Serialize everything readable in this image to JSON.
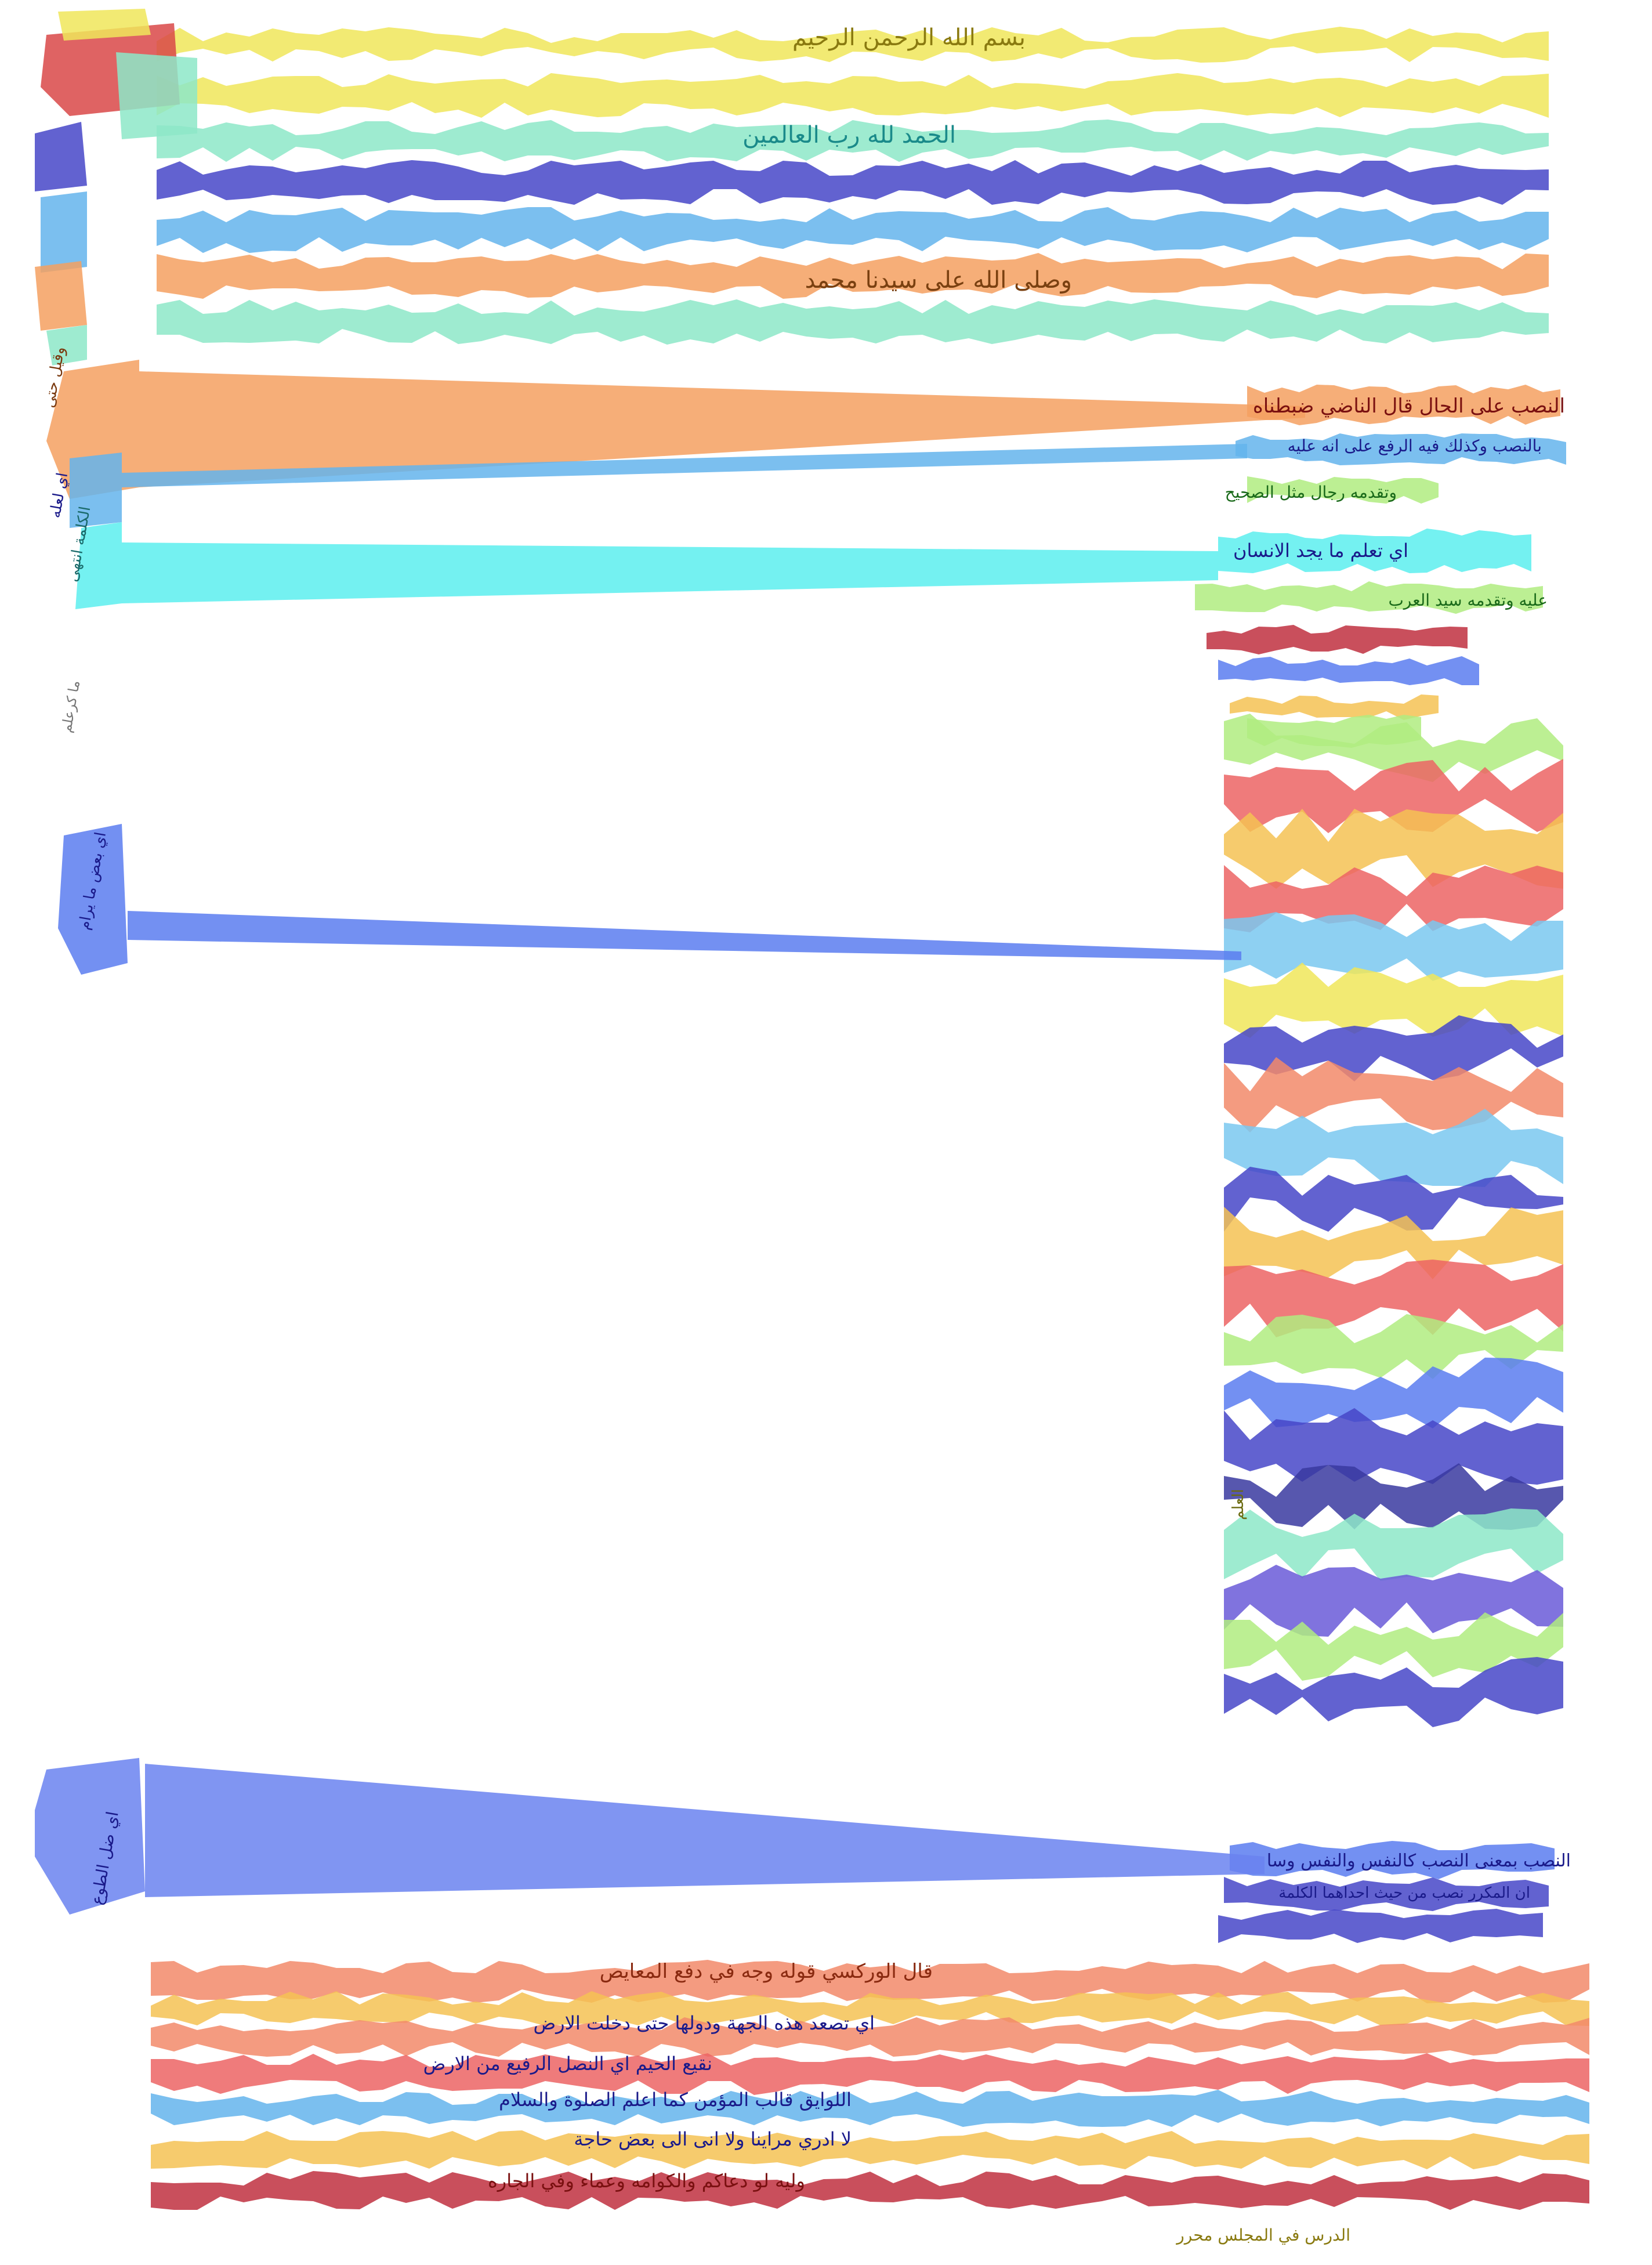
{
  "page": {
    "kind": "segmented manuscript page",
    "script": "Arabic (handwritten)",
    "background": "#ffffff"
  },
  "palette": {
    "yellow": "#f0e65a",
    "red": "#d94848",
    "mint": "#8de8c8",
    "indigo": "#4646c8",
    "sky": "#64b4ec",
    "orange": "#f4a060",
    "cyan": "#5ceeee",
    "green": "#b0ec80",
    "blue": "#5a7cf0",
    "crimson": "#c03040",
    "salmon": "#f28a6a",
    "gold": "#f4c254",
    "lightblue": "#7ac8f0",
    "navy": "#3a3aa0",
    "violet": "#6a5ad8",
    "periwinkle": "#6a82f0",
    "rose": "#ec6464",
    "teal_ink": "#1a8a8a",
    "olive_ink": "#8a7a10",
    "navy_ink": "#1a1a8a",
    "maroon_ink": "#7a1010"
  },
  "main_text": {
    "line_1": "بسم الله الرحمن الرحيم",
    "line_3": "الحمد لله رب العالمين",
    "line_6": "وصلى الله على سيدنا محمد"
  },
  "right_gloss": {
    "gloss_1": "النصب على الحال قال الناضي ضبطناه",
    "gloss_2": "بالنصب وكذلك فيه الرفع على انه عليه",
    "gloss_3": "وتقدمه رجال مثل الصحيح",
    "gloss_4": "اي تعلم ما يجد الانسان",
    "gloss_5": "عليه وتقدمه سيد العرب",
    "gloss_6": "النصب بمعنى النصب كالنفس والنفس وسا",
    "gloss_7": "ان المكرر نصب من حيث احداهما الكلمة"
  },
  "bottom_text": {
    "line_1": "قال الوركسي قوله وجه في دفع المعايص",
    "line_2": "اي تصعد هذه الجهة ودولها حتى دخلت الارض",
    "line_3": "نقيع الحيم اي النصل الرفيع من الارض",
    "line_4": "اللوايق قالب المؤمن كما اعلم الصلوة والسلام",
    "line_5": "لا ادري مراينا ولا انى الى بعض حاجة",
    "line_6": "وليه لو دعاكم والكوامه وعماء وفي الجاره",
    "signature": "الدرس في المجلس محرر"
  },
  "left_margin": {
    "note_1": "وقيل حتى",
    "note_2": "اي لعله",
    "note_3": "الكلمة انتهى",
    "note_4": "ما كرعلم",
    "note_5": "اي بعض ما يرام",
    "note_6": "اي ضل الطوع"
  },
  "right_column_label": "العلم"
}
